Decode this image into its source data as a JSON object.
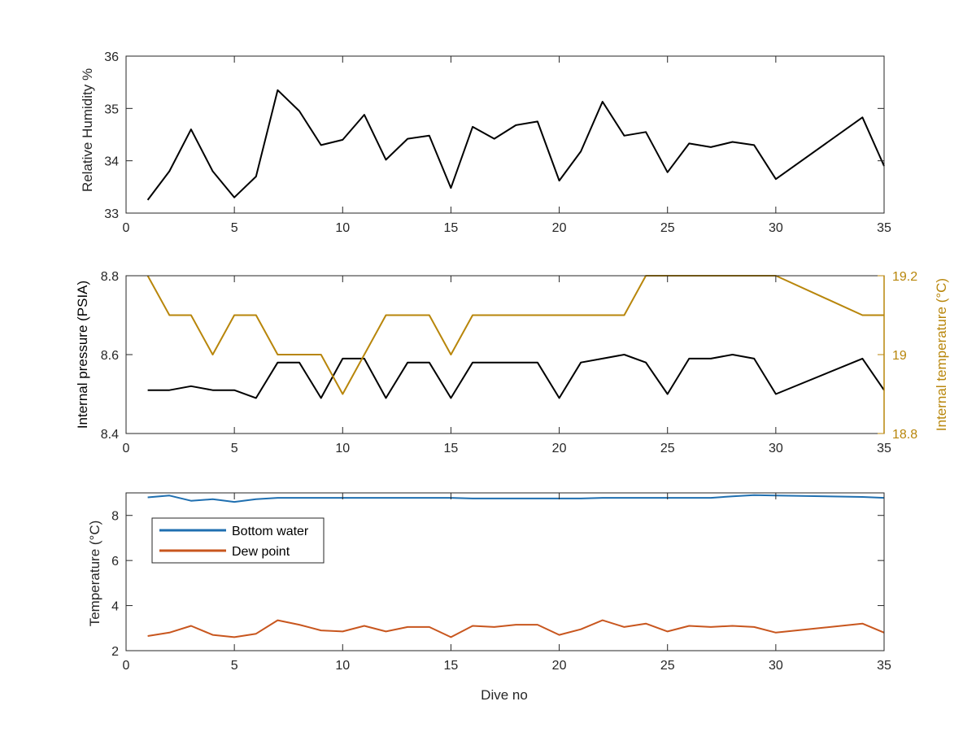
{
  "chart_data": [
    {
      "type": "line",
      "xlim": [
        0,
        35
      ],
      "ylim": [
        33,
        36
      ],
      "xticks": [
        0,
        5,
        10,
        15,
        20,
        25,
        30,
        35
      ],
      "yticks": [
        33,
        34,
        35,
        36
      ],
      "xticklabels": [
        "0",
        "5",
        "10",
        "15",
        "20",
        "25",
        "30",
        "35"
      ],
      "yticklabels": [
        "33",
        "34",
        "35",
        "36"
      ],
      "xlabel": "",
      "ylabel": "Relative Humidity %",
      "grid": false,
      "series": [
        {
          "color": "#000000",
          "x": [
            1,
            2,
            3,
            4,
            5,
            6,
            7,
            8,
            9,
            10,
            11,
            12,
            13,
            14,
            15,
            16,
            17,
            18,
            19,
            20,
            21,
            22,
            23,
            24,
            25,
            26,
            27,
            28,
            29,
            30,
            34,
            35
          ],
          "y": [
            33.25,
            33.8,
            34.6,
            33.8,
            33.3,
            33.7,
            35.35,
            34.95,
            34.3,
            34.4,
            34.88,
            34.02,
            34.42,
            34.48,
            33.48,
            34.65,
            34.42,
            34.68,
            34.75,
            33.62,
            34.18,
            35.13,
            34.48,
            34.55,
            33.78,
            34.33,
            34.26,
            34.36,
            34.3,
            33.65,
            34.83,
            33.9
          ]
        }
      ]
    },
    {
      "type": "line",
      "xlim": [
        0,
        35
      ],
      "ylim": [
        8.4,
        8.8
      ],
      "y2lim": [
        18.8,
        19.2
      ],
      "xticks": [
        0,
        5,
        10,
        15,
        20,
        25,
        30,
        35
      ],
      "yticks": [
        8.4,
        8.6,
        8.8
      ],
      "y2ticks": [
        18.8,
        19,
        19.2
      ],
      "xticklabels": [
        "0",
        "5",
        "10",
        "15",
        "20",
        "25",
        "30",
        "35"
      ],
      "yticklabels": [
        "8.4",
        "8.6",
        "8.8"
      ],
      "y2ticklabels": [
        "18.8",
        "19",
        "19.2"
      ],
      "xlabel": "",
      "ylabel": "Internal pressure (PSIA)",
      "y2label": "Internal temperature (°C)",
      "y2color": "#b8860b",
      "grid": false,
      "series": [
        {
          "color": "#000000",
          "axis": "left",
          "x": [
            1,
            2,
            3,
            4,
            5,
            6,
            7,
            8,
            9,
            10,
            11,
            12,
            13,
            14,
            15,
            16,
            17,
            18,
            19,
            20,
            21,
            22,
            23,
            24,
            25,
            26,
            27,
            28,
            29,
            30,
            34,
            35
          ],
          "y": [
            8.51,
            8.51,
            8.52,
            8.51,
            8.51,
            8.49,
            8.58,
            8.58,
            8.49,
            8.59,
            8.59,
            8.49,
            8.58,
            8.58,
            8.49,
            8.58,
            8.58,
            8.58,
            8.58,
            8.49,
            8.58,
            8.59,
            8.6,
            8.58,
            8.5,
            8.59,
            8.59,
            8.6,
            8.59,
            8.5,
            8.59,
            8.51
          ]
        },
        {
          "color": "#b8860b",
          "axis": "right",
          "x": [
            1,
            2,
            3,
            4,
            5,
            6,
            7,
            8,
            9,
            10,
            11,
            12,
            13,
            14,
            15,
            16,
            17,
            18,
            19,
            20,
            21,
            22,
            23,
            24,
            25,
            26,
            27,
            28,
            29,
            30,
            34,
            35
          ],
          "y": [
            19.2,
            19.1,
            19.1,
            19.0,
            19.1,
            19.1,
            19.0,
            19.0,
            19.0,
            18.9,
            19.0,
            19.1,
            19.1,
            19.1,
            19.0,
            19.1,
            19.1,
            19.1,
            19.1,
            19.1,
            19.1,
            19.1,
            19.1,
            19.2,
            19.2,
            19.2,
            19.2,
            19.2,
            19.2,
            19.2,
            19.1,
            19.1
          ]
        }
      ]
    },
    {
      "type": "line",
      "xlim": [
        0,
        35
      ],
      "ylim": [
        2,
        9
      ],
      "xticks": [
        0,
        5,
        10,
        15,
        20,
        25,
        30,
        35
      ],
      "yticks": [
        2,
        4,
        6,
        8
      ],
      "xticklabels": [
        "0",
        "5",
        "10",
        "15",
        "20",
        "25",
        "30",
        "35"
      ],
      "yticklabels": [
        "2",
        "4",
        "6",
        "8"
      ],
      "xlabel": "Dive no",
      "ylabel": "Temperature (°C)",
      "grid": false,
      "legend": "top-left",
      "series": [
        {
          "name": "Bottom water",
          "color": "#1f6fb0",
          "x": [
            1,
            2,
            3,
            4,
            5,
            6,
            7,
            8,
            9,
            10,
            11,
            12,
            13,
            14,
            15,
            16,
            17,
            18,
            19,
            20,
            21,
            22,
            23,
            24,
            25,
            26,
            27,
            28,
            29,
            30,
            34,
            35
          ],
          "y": [
            8.8,
            8.88,
            8.65,
            8.72,
            8.6,
            8.72,
            8.78,
            8.78,
            8.78,
            8.78,
            8.78,
            8.78,
            8.78,
            8.78,
            8.78,
            8.75,
            8.75,
            8.75,
            8.75,
            8.75,
            8.75,
            8.78,
            8.78,
            8.78,
            8.78,
            8.78,
            8.78,
            8.85,
            8.9,
            8.88,
            8.82,
            8.78
          ]
        },
        {
          "name": "Dew point",
          "color": "#c8561e",
          "x": [
            1,
            2,
            3,
            4,
            5,
            6,
            7,
            8,
            9,
            10,
            11,
            12,
            13,
            14,
            15,
            16,
            17,
            18,
            19,
            20,
            21,
            22,
            23,
            24,
            25,
            26,
            27,
            28,
            29,
            30,
            34,
            35
          ],
          "y": [
            2.65,
            2.8,
            3.1,
            2.7,
            2.6,
            2.75,
            3.35,
            3.15,
            2.9,
            2.85,
            3.1,
            2.85,
            3.05,
            3.05,
            2.6,
            3.1,
            3.05,
            3.15,
            3.15,
            2.7,
            2.95,
            3.35,
            3.05,
            3.2,
            2.85,
            3.1,
            3.05,
            3.1,
            3.05,
            2.8,
            3.2,
            2.8
          ]
        }
      ]
    }
  ]
}
